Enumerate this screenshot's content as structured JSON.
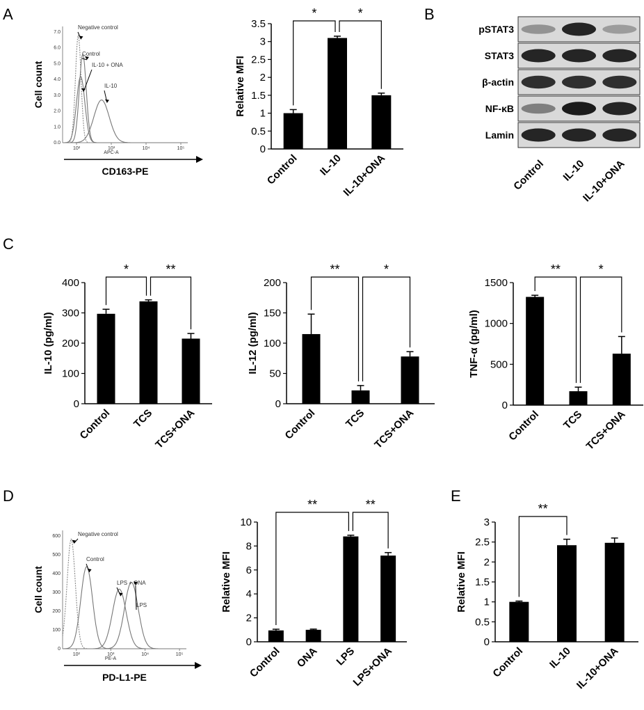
{
  "panel_labels": [
    "A",
    "B",
    "C",
    "D",
    "E"
  ],
  "chart_data": [
    {
      "id": "A_hist",
      "type": "line",
      "ylabel": "Cell count",
      "xlabel": "CD163-PE",
      "inner_axis_label": "APC-A",
      "tick_labels": [
        "10²",
        "10³",
        "10⁴",
        "10⁵"
      ],
      "y_tick_labels": [
        "0.0",
        "1.0",
        "2.0",
        "3.0",
        "4.0",
        "5.0",
        "6.0",
        "7.0"
      ],
      "annotations": [
        "Negative control",
        "Control",
        "IL-10 + ONA",
        "IL-10"
      ],
      "series": [
        {
          "name": "Negative control",
          "center": 2.05,
          "width": 0.08,
          "peak": 7.3
        },
        {
          "name": "Control",
          "center": 2.18,
          "width": 0.1,
          "peak": 6.0
        },
        {
          "name": "IL-10 + ONA",
          "center": 2.12,
          "width": 0.12,
          "peak": 4.5
        },
        {
          "name": "IL-10",
          "center": 2.72,
          "width": 0.22,
          "peak": 2.9
        }
      ]
    },
    {
      "id": "A_bar",
      "type": "bar",
      "ylabel": "Relative MFI",
      "categories": [
        "Control",
        "IL-10",
        "IL-10+ONA"
      ],
      "values": [
        1.0,
        3.1,
        1.5
      ],
      "errors": [
        0.1,
        0.05,
        0.06
      ],
      "ylim": [
        0,
        3.5
      ],
      "yticks": [
        "0",
        "0.5",
        "1",
        "1.5",
        "2",
        "2.5",
        "3",
        "3.5"
      ],
      "significance": [
        {
          "from": 0,
          "to": 1,
          "label": "*"
        },
        {
          "from": 1,
          "to": 2,
          "label": "*"
        }
      ]
    },
    {
      "id": "C_IL10",
      "type": "bar",
      "ylabel": "IL-10 (pg/ml)",
      "categories": [
        "Control",
        "TCS",
        "TCS+ONA"
      ],
      "values": [
        297,
        338,
        215
      ],
      "errors": [
        15,
        5,
        17
      ],
      "ylim": [
        0,
        400
      ],
      "yticks": [
        "0",
        "100",
        "200",
        "300",
        "400"
      ],
      "significance": [
        {
          "from": 0,
          "to": 1,
          "label": "*"
        },
        {
          "from": 1,
          "to": 2,
          "label": "**"
        }
      ]
    },
    {
      "id": "C_IL12",
      "type": "bar",
      "ylabel": "IL-12 (pg/ml)",
      "categories": [
        "Control",
        "TCS",
        "TCS+ONA"
      ],
      "values": [
        115,
        22,
        78
      ],
      "errors": [
        33,
        8,
        8
      ],
      "ylim": [
        0,
        200
      ],
      "yticks": [
        "0",
        "50",
        "100",
        "150",
        "200"
      ],
      "significance": [
        {
          "from": 0,
          "to": 1,
          "label": "**"
        },
        {
          "from": 1,
          "to": 2,
          "label": "*"
        }
      ]
    },
    {
      "id": "C_TNF",
      "type": "bar",
      "ylabel": "TNF-α (pg/ml)",
      "categories": [
        "Control",
        "TCS",
        "TCS+ONA"
      ],
      "values": [
        1325,
        170,
        630
      ],
      "errors": [
        20,
        50,
        210
      ],
      "ylim": [
        0,
        1500
      ],
      "yticks": [
        "0",
        "500",
        "1000",
        "1500"
      ],
      "significance": [
        {
          "from": 0,
          "to": 1,
          "label": "**"
        },
        {
          "from": 1,
          "to": 2,
          "label": "*"
        }
      ]
    },
    {
      "id": "D_hist",
      "type": "line",
      "ylabel": "Cell count",
      "xlabel": "PD-L1-PE",
      "inner_axis_label": "PE-A",
      "tick_labels": [
        "10²",
        "10³",
        "10⁴",
        "10⁵"
      ],
      "y_tick_labels": [
        "0",
        "100",
        "200",
        "300",
        "400",
        "500",
        "600"
      ],
      "annotations": [
        "Negative control",
        "Control",
        "LPS + ONA",
        "LPS"
      ],
      "series": [
        {
          "name": "Negative control",
          "center": 1.85,
          "width": 0.12,
          "peak": 560
        },
        {
          "name": "Control",
          "center": 2.3,
          "width": 0.17,
          "peak": 420
        },
        {
          "name": "LPS + ONA",
          "center": 3.25,
          "width": 0.2,
          "peak": 305
        },
        {
          "name": "LPS",
          "center": 3.6,
          "width": 0.2,
          "peak": 340
        }
      ]
    },
    {
      "id": "D_bar",
      "type": "bar",
      "ylabel": "Relative MFI",
      "categories": [
        "Control",
        "ONA",
        "LPS",
        "LPS+ONA"
      ],
      "values": [
        0.95,
        1.0,
        8.8,
        7.2
      ],
      "errors": [
        0.1,
        0.06,
        0.1,
        0.25
      ],
      "ylim": [
        0,
        10
      ],
      "yticks": [
        "0",
        "2",
        "4",
        "6",
        "8",
        "10"
      ],
      "significance": [
        {
          "from": 0,
          "to": 2,
          "label": "**"
        },
        {
          "from": 2,
          "to": 3,
          "label": "**"
        }
      ]
    },
    {
      "id": "E_bar",
      "type": "bar",
      "ylabel": "Relative MFI",
      "categories": [
        "Control",
        "IL-10",
        "IL-10+ONA"
      ],
      "values": [
        1.0,
        2.42,
        2.48
      ],
      "errors": [
        0.02,
        0.15,
        0.12
      ],
      "ylim": [
        0,
        3
      ],
      "yticks": [
        "0",
        "0.5",
        "1",
        "1.5",
        "2",
        "2.5",
        "3"
      ],
      "significance": [
        {
          "from": 0,
          "to": 1,
          "label": "**"
        }
      ]
    }
  ],
  "western_blot": {
    "rows": [
      "pSTAT3",
      "STAT3",
      "β-actin",
      "NF-κB",
      "Lamin"
    ],
    "columns": [
      "Control",
      "IL-10",
      "IL-10+ONA"
    ],
    "band_intensity": [
      [
        0.35,
        0.9,
        0.3
      ],
      [
        0.9,
        0.9,
        0.9
      ],
      [
        0.85,
        0.85,
        0.85
      ],
      [
        0.45,
        0.95,
        0.9
      ],
      [
        0.9,
        0.9,
        0.9
      ]
    ]
  }
}
